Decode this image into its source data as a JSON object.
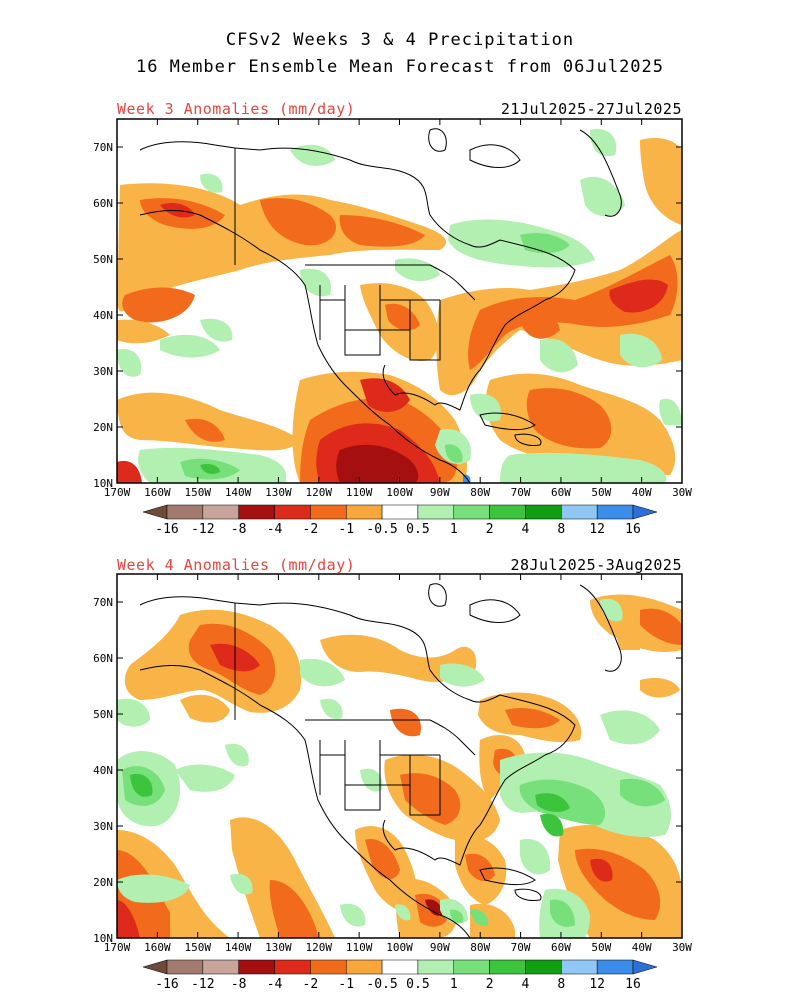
{
  "title_line1": "CFSv2 Weeks 3 & 4 Precipitation",
  "title_line2": "16 Member Ensemble Mean Forecast from 06Jul2025",
  "panels": [
    {
      "label": "Week 3 Anomalies (mm/day)",
      "dates": "21Jul2025-27Jul2025",
      "lat_ticks": [
        "70N",
        "60N",
        "50N",
        "40N",
        "30N",
        "20N",
        "10N"
      ],
      "lon_ticks": [
        "170W",
        "160W",
        "150W",
        "140W",
        "130W",
        "120W",
        "110W",
        "100W",
        "90W",
        "80W",
        "70W",
        "60W",
        "50W",
        "40W",
        "30W"
      ]
    },
    {
      "label": "Week 4 Anomalies (mm/day)",
      "dates": "28Jul2025-3Aug2025",
      "lat_ticks": [
        "70N",
        "60N",
        "50N",
        "40N",
        "30N",
        "20N",
        "10N"
      ],
      "lon_ticks": [
        "170W",
        "160W",
        "150W",
        "140W",
        "130W",
        "120W",
        "110W",
        "100W",
        "90W",
        "80W",
        "70W",
        "60W",
        "50W",
        "40W",
        "30W"
      ]
    }
  ],
  "colorbar": {
    "labels": [
      "-16",
      "-12",
      "-8",
      "-4",
      "-2",
      "-1",
      "-0.5",
      "0.5",
      "1",
      "2",
      "4",
      "8",
      "12",
      "16"
    ],
    "colors": [
      "#6e4a3a",
      "#a27a6e",
      "#c9a49a",
      "#a50f0f",
      "#dd2a1a",
      "#f26b1c",
      "#f9a63a",
      "#ffffff",
      "#b2f0b2",
      "#78e07a",
      "#3cc43c",
      "#129e12",
      "#8fc8f5",
      "#3a8de8",
      "#2c6fd6"
    ]
  },
  "colors": {
    "dry_light": "#f9b447",
    "dry_mid": "#f26b1c",
    "dry_strong": "#dd2a1a",
    "dry_max": "#a50f0f",
    "wet_light": "#b2f0b2",
    "wet_mid": "#78e07a",
    "wet_strong": "#3cc43c",
    "wet_max": "#129e12",
    "title_accent": "#e8463c"
  }
}
